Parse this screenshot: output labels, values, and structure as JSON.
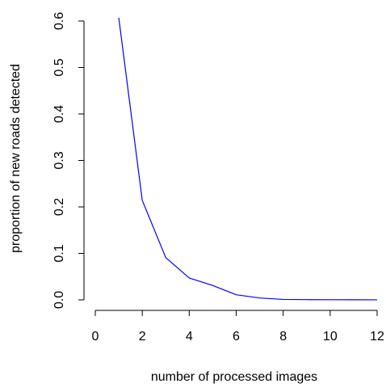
{
  "chart_data": {
    "type": "line",
    "title": "",
    "xlabel": "number of processed images",
    "ylabel": "proportion of new roads detected",
    "xlim": [
      0,
      12
    ],
    "ylim": [
      0,
      0.6
    ],
    "xticks": [
      0,
      2,
      4,
      6,
      8,
      10,
      12
    ],
    "yticks": [
      0.0,
      0.1,
      0.2,
      0.3,
      0.4,
      0.5,
      0.6
    ],
    "xtick_labels": [
      "0",
      "2",
      "4",
      "6",
      "8",
      "10",
      "12"
    ],
    "ytick_labels": [
      "0.0",
      "0.1",
      "0.2",
      "0.3",
      "0.4",
      "0.5",
      "0.6"
    ],
    "grid": false,
    "legend": "none",
    "series": [
      {
        "color": "#0000ff",
        "x": [
          1,
          2,
          3,
          4,
          5,
          6,
          7,
          8,
          9,
          10,
          11,
          12
        ],
        "y": [
          0.607,
          0.214,
          0.091,
          0.047,
          0.031,
          0.011,
          0.004,
          0.001,
          0.0005,
          0.0003,
          0.0002,
          0.0001
        ]
      }
    ]
  }
}
